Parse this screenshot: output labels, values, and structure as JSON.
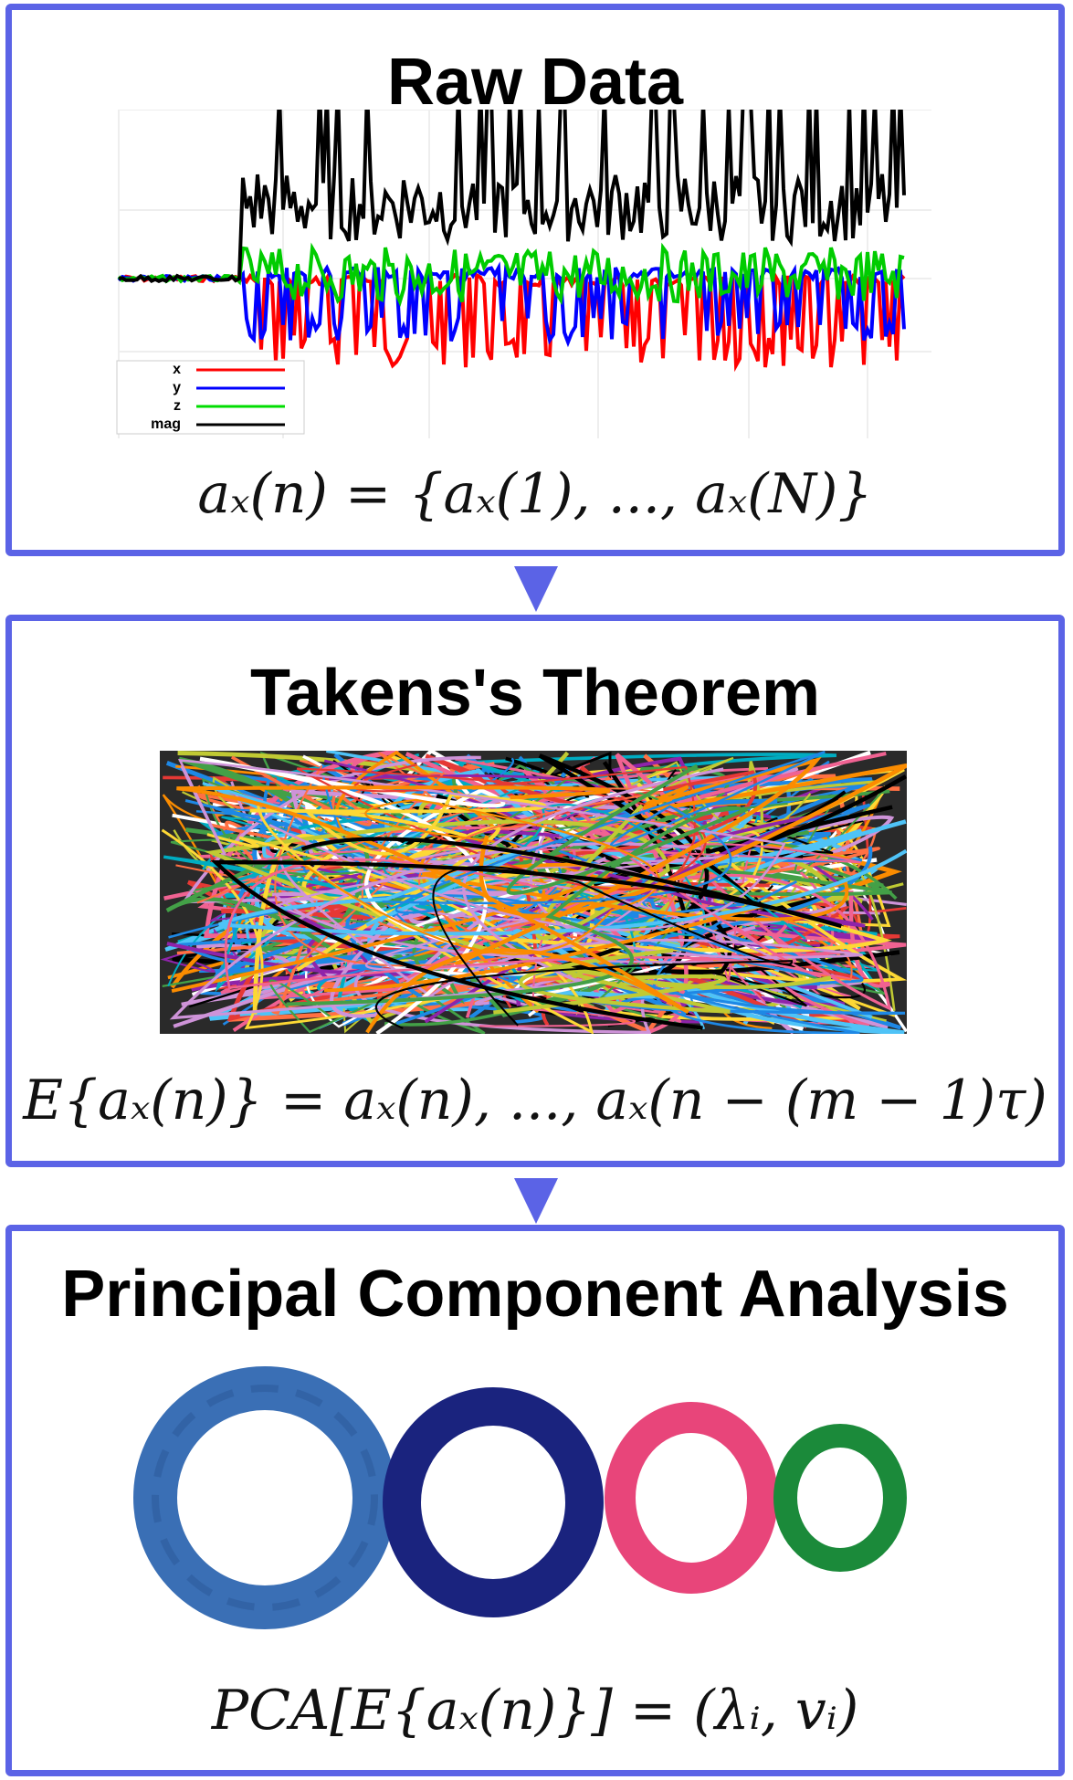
{
  "panel1": {
    "title": "Raw Data",
    "equation": "aₓ(n) = {aₓ(1), ..., aₓ(N)}",
    "legend": [
      {
        "label": "x",
        "color": "#ff0000"
      },
      {
        "label": "y",
        "color": "#0000ff"
      },
      {
        "label": "z",
        "color": "#00dd00"
      },
      {
        "label": "mag",
        "color": "#000000"
      }
    ]
  },
  "panel2": {
    "title": "Takens's Theorem",
    "equation": "E{aₓ(n)} = aₓ(n), ..., aₓ(n − (m − 1)τ)"
  },
  "panel3": {
    "title": "Principal Component Analysis",
    "equation": "PCA[E{aₓ(n)}] = (λᵢ, vᵢ)"
  },
  "colors": {
    "border": "#5b63e6",
    "ring_colors": [
      "#3a6fb5",
      "#1a237e",
      "#e8457a",
      "#1b8a3a"
    ]
  }
}
